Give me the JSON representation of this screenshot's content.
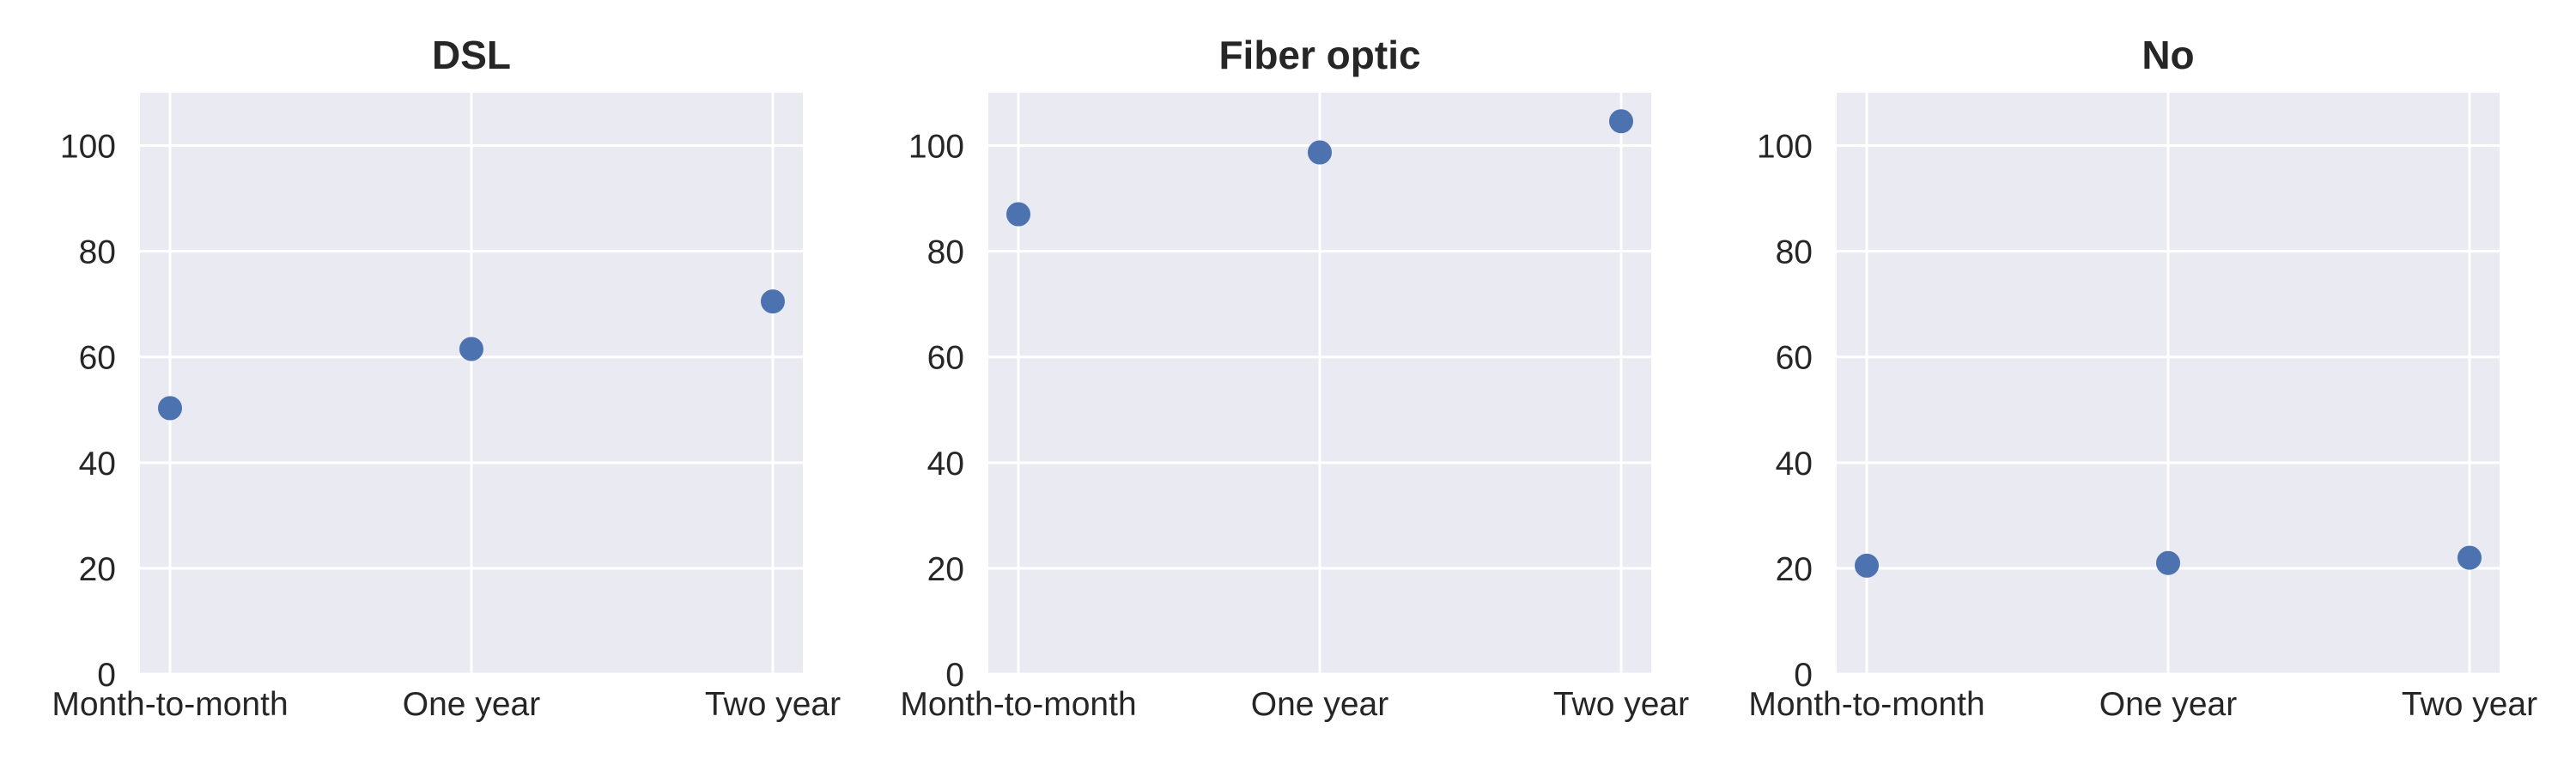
{
  "chart_data": [
    {
      "type": "scatter",
      "title": "DSL",
      "categories": [
        "Month-to-month",
        "One year",
        "Two year"
      ],
      "values": [
        50.3,
        61.5,
        70.5
      ],
      "yticks": [
        0,
        20,
        40,
        60,
        80,
        100
      ],
      "ylim": [
        0,
        110
      ],
      "grid": true,
      "xlabel": "",
      "ylabel": ""
    },
    {
      "type": "scatter",
      "title": "Fiber optic",
      "categories": [
        "Month-to-month",
        "One year",
        "Two year"
      ],
      "values": [
        87.0,
        98.7,
        104.6
      ],
      "yticks": [
        0,
        20,
        40,
        60,
        80,
        100
      ],
      "ylim": [
        0,
        110
      ],
      "grid": true,
      "xlabel": "",
      "ylabel": ""
    },
    {
      "type": "scatter",
      "title": "No",
      "categories": [
        "Month-to-month",
        "One year",
        "Two year"
      ],
      "values": [
        20.5,
        21.0,
        22.0
      ],
      "yticks": [
        0,
        20,
        40,
        60,
        80,
        100
      ],
      "ylim": [
        0,
        110
      ],
      "grid": true,
      "xlabel": "",
      "ylabel": ""
    }
  ],
  "colors": {
    "plot_background": "#EAEAF2",
    "grid": "#FFFFFF",
    "marker": "#4C72B0",
    "text": "#262626"
  }
}
